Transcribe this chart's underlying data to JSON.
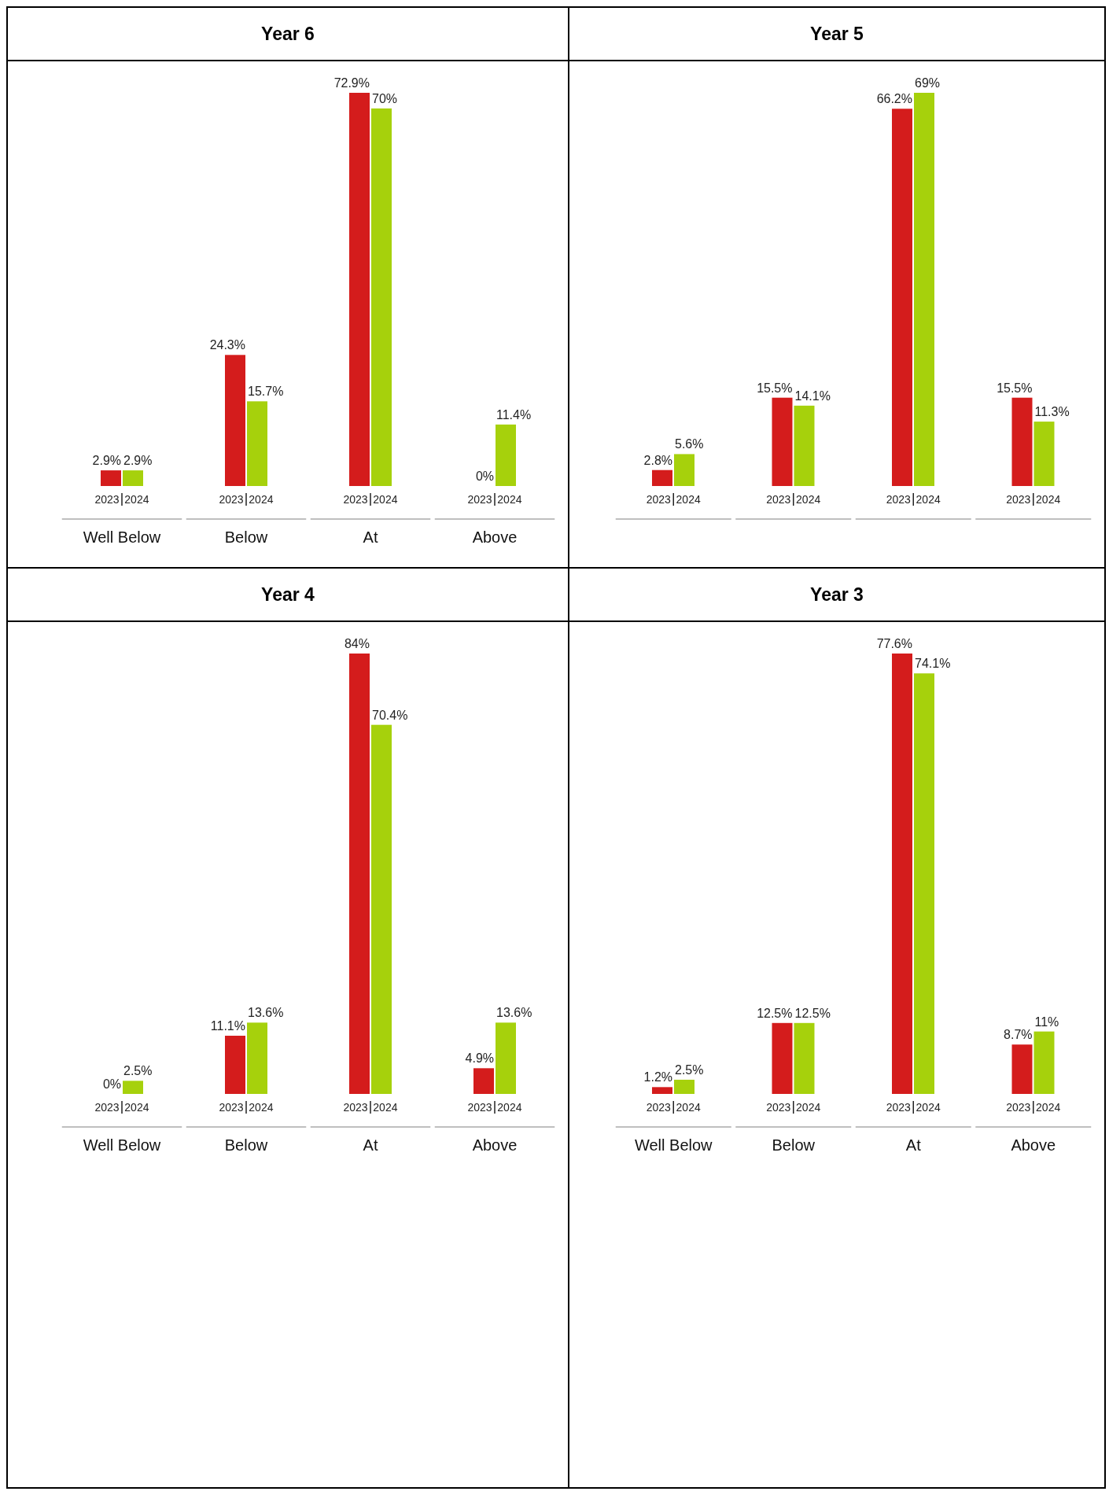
{
  "chart_data": [
    {
      "type": "bar",
      "title": "Year 6",
      "categories": [
        "Well Below",
        "Below",
        "At",
        "Above"
      ],
      "series": [
        {
          "name": "2023",
          "color": "#d41c1c",
          "values": [
            2.9,
            24.3,
            72.9,
            0
          ],
          "value_labels": [
            "2.9%",
            "24.3%",
            "72.9%",
            "0%"
          ]
        },
        {
          "name": "2024",
          "color": "#a6d10c",
          "values": [
            2.9,
            15.7,
            70,
            11.4
          ],
          "value_labels": [
            "2.9%",
            "15.7%",
            "70%",
            "11.4%"
          ]
        }
      ]
    },
    {
      "type": "bar",
      "title": "Year 5",
      "categories": [
        null,
        null,
        null,
        null
      ],
      "series": [
        {
          "name": "2023",
          "color": "#d41c1c",
          "values": [
            2.8,
            15.5,
            66.2,
            15.5
          ],
          "value_labels": [
            "2.8%",
            "15.5%",
            "66.2%",
            "15.5%"
          ]
        },
        {
          "name": "2024",
          "color": "#a6d10c",
          "values": [
            5.6,
            14.1,
            69,
            11.3
          ],
          "value_labels": [
            "5.6%",
            "14.1%",
            "69%",
            "11.3%"
          ]
        }
      ]
    },
    {
      "type": "bar",
      "title": "Year 4",
      "categories": [
        "Well Below",
        "Below",
        "At",
        "Above"
      ],
      "series": [
        {
          "name": "2023",
          "color": "#d41c1c",
          "values": [
            0,
            11.1,
            84,
            4.9
          ],
          "value_labels": [
            "0%",
            "11.1%",
            "84%",
            "4.9%"
          ]
        },
        {
          "name": "2024",
          "color": "#a6d10c",
          "values": [
            2.5,
            13.6,
            70.4,
            13.6
          ],
          "value_labels": [
            "2.5%",
            "13.6%",
            "70.4%",
            "13.6%"
          ]
        }
      ]
    },
    {
      "type": "bar",
      "title": "Year 3",
      "categories": [
        "Well Below",
        "Below",
        "At",
        "Above"
      ],
      "series": [
        {
          "name": "2023",
          "color": "#d41c1c",
          "values": [
            1.2,
            12.5,
            77.6,
            8.7
          ],
          "value_labels": [
            "1.2%",
            "12.5%",
            "77.6%",
            "8.7%"
          ]
        },
        {
          "name": "2024",
          "color": "#a6d10c",
          "values": [
            2.5,
            12.5,
            74.1,
            11
          ],
          "value_labels": [
            "2.5%",
            "12.5%",
            "74.1%",
            "11%"
          ]
        }
      ]
    }
  ]
}
